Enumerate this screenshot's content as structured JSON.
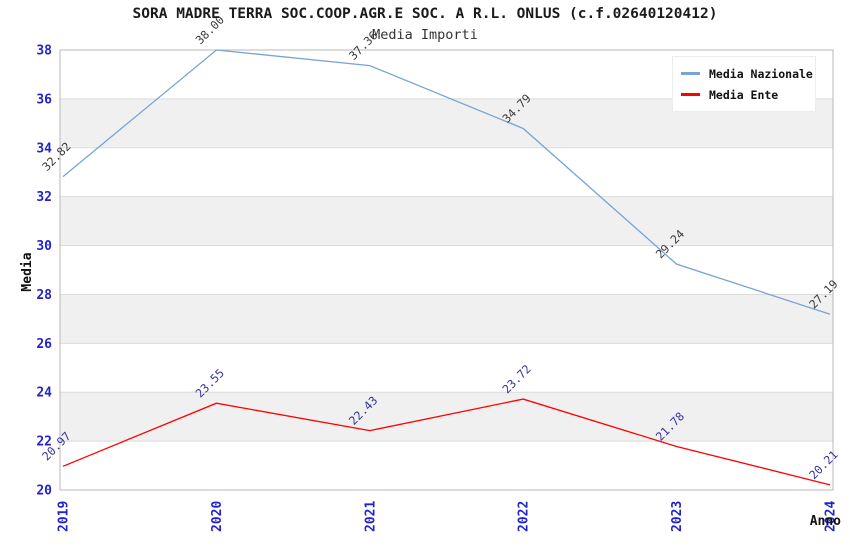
{
  "header": {
    "title": "SORA MADRE TERRA SOC.COOP.AGR.E SOC. A R.L. ONLUS (c.f.02640120412)",
    "subtitle": "Media Importi"
  },
  "legend": {
    "items": [
      {
        "label": "Media Nazionale",
        "color": "#76a5d5"
      },
      {
        "label": "Media Ente",
        "color": "#ff0000"
      }
    ]
  },
  "axes": {
    "y_label": "Media",
    "x_label": "Anno",
    "y_ticks": [
      20,
      22,
      24,
      26,
      28,
      30,
      32,
      34,
      36,
      38
    ],
    "x_ticks": [
      "2019",
      "2020",
      "2021",
      "2022",
      "2023",
      "2024"
    ],
    "tick_color": "#2323cc",
    "axis_label_color": "#111111"
  },
  "chart_data": {
    "type": "line",
    "title": "SORA MADRE TERRA SOC.COOP.AGR.E SOC. A R.L. ONLUS (c.f.02640120412)",
    "subtitle": "Media Importi",
    "xlabel": "Anno",
    "ylabel": "Media",
    "x": [
      2019,
      2020,
      2021,
      2022,
      2023,
      2024
    ],
    "ylim": [
      20,
      38
    ],
    "legend_position": "top-right",
    "grid": "alternating-horizontal-bands",
    "band_tops": [
      36,
      32,
      28,
      24
    ],
    "band_color": "#f0f0f0",
    "gridline_color": "#dcdcdc",
    "frame_color": "#b8b8b8",
    "series": [
      {
        "name": "Media Nazionale",
        "color": "#76a5d5",
        "values": [
          32.82,
          38.0,
          37.36,
          34.79,
          29.24,
          27.19
        ],
        "labels": [
          "32.82",
          "38.00",
          "37.36",
          "34.79",
          "29.24",
          "27.19"
        ],
        "label_color": "#3a3a3a"
      },
      {
        "name": "Media Ente",
        "color": "#ff0000",
        "values": [
          20.97,
          23.55,
          22.43,
          23.72,
          21.78,
          20.21
        ],
        "labels": [
          "20.97",
          "23.55",
          "22.43",
          "23.72",
          "21.78",
          "20.21"
        ],
        "label_color": "#333399"
      }
    ]
  }
}
